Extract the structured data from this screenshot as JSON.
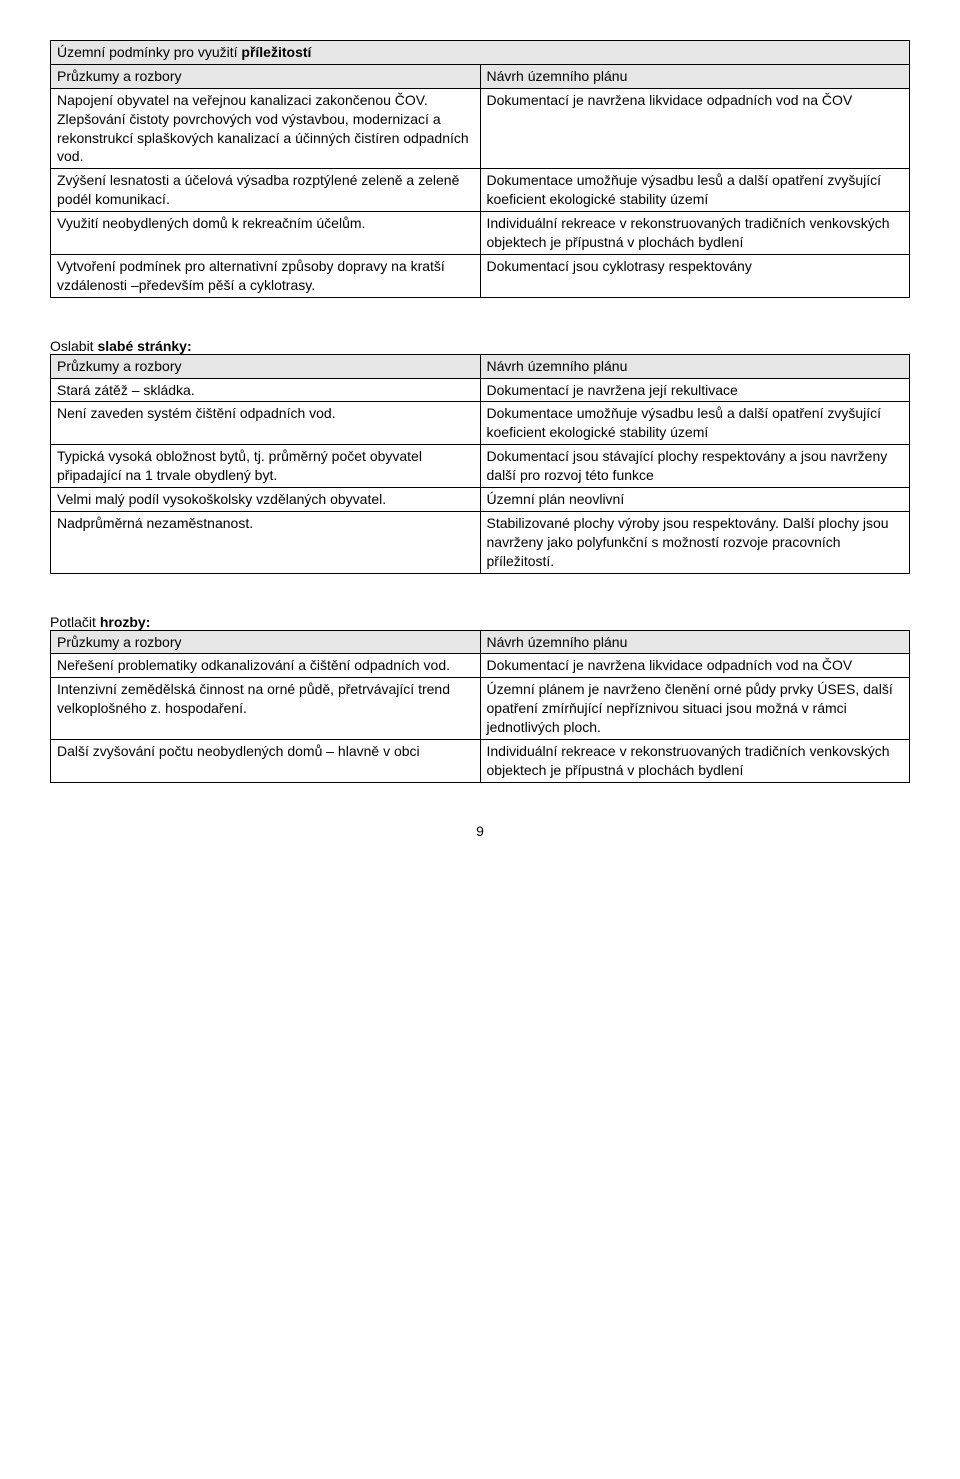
{
  "table1": {
    "title_cell": "Územní podmínky pro využití <b>příležitostí</b>",
    "header": {
      "left": "Průzkumy a rozbory",
      "right": "Návrh územního plánu"
    },
    "rows": [
      {
        "left": "Napojení obyvatel na veřejnou kanalizaci zakončenou ČOV.<br>Zlepšování čistoty povrchových vod výstavbou, modernizací a rekonstrukcí splaškových kanalizací a účinných čistíren odpadních vod.",
        "right": "Dokumentací je navržena likvidace odpadních vod na ČOV"
      },
      {
        "left": "Zvýšení lesnatosti a účelová výsadba rozptýlené zeleně a zeleně podél komunikací.",
        "right": "Dokumentace umožňuje výsadbu lesů a další opatření zvyšující koeficient ekologické stability území"
      },
      {
        "left": "Využití neobydlených domů k rekreačním účelům.",
        "right": "Individuální rekreace v rekonstruovaných tradičních venkovských objektech je přípustná v plochách bydlení"
      },
      {
        "left": "Vytvoření podmínek pro alternativní způsoby dopravy na kratší vzdálenosti –především pěší a cyklotrasy.",
        "right": "Dokumentací jsou cyklotrasy respektovány"
      }
    ]
  },
  "table2": {
    "heading": "Oslabit <b>slabé stránky:</b>",
    "header": {
      "left": "Průzkumy a rozbory",
      "right": "Návrh územního plánu"
    },
    "rows": [
      {
        "left": "Stará zátěž – skládka.",
        "right": "Dokumentací je navržena její rekultivace"
      },
      {
        "left": "Není zaveden systém čištění odpadních vod.",
        "right": "Dokumentace umožňuje výsadbu lesů a další opatření zvyšující koeficient ekologické stability území"
      },
      {
        "left": "Typická vysoká obložnost bytů, tj. průměrný počet obyvatel připadající na 1 trvale obydlený byt.",
        "right": "Dokumentací jsou stávající plochy respektovány a jsou navrženy další pro rozvoj této funkce"
      },
      {
        "left": "Velmi malý podíl vysokoškolsky vzdělaných obyvatel.",
        "right": "Územní plán neovlivní"
      },
      {
        "left": "Nadprůměrná nezaměstnanost.",
        "right": "Stabilizované plochy výroby jsou respektovány. Další plochy jsou navrženy jako polyfunkční s možností rozvoje pracovních příležitostí."
      }
    ]
  },
  "table3": {
    "heading": "Potlačit <b>hrozby:</b>",
    "header": {
      "left": "Průzkumy a rozbory",
      "right": "Návrh územního plánu"
    },
    "rows": [
      {
        "left": "Neřešení problematiky odkanalizování a čištění odpadních vod.",
        "right": "Dokumentací je navržena likvidace odpadních vod na ČOV"
      },
      {
        "left": "Intenzivní zemědělská činnost na orné půdě, přetrvávající trend velkoplošného z. hospodaření.",
        "right": "Územní plánem je navrženo členění orné půdy prvky ÚSES, další opatření zmírňující nepříznivou situaci jsou možná v rámci jednotlivých ploch."
      },
      {
        "left": "Další zvyšování počtu neobydlených domů – hlavně v obci",
        "right": "Individuální rekreace v rekonstruovaných tradičních venkovských objektech je přípustná v plochách bydlení"
      }
    ]
  },
  "page_number": "9"
}
